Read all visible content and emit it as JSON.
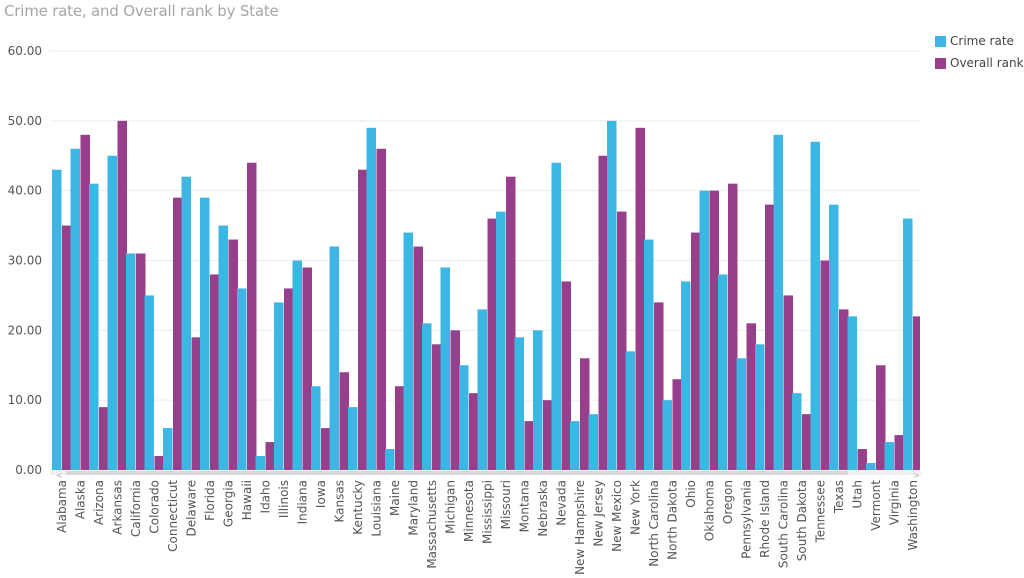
{
  "chart_data": {
    "type": "bar",
    "title": "Crime rate, and Overall rank by State",
    "xlabel": "",
    "ylabel": "",
    "ylim": [
      0,
      60
    ],
    "yticks": [
      "0.00",
      "10.00",
      "20.00",
      "30.00",
      "40.00",
      "50.00",
      "60.00"
    ],
    "ytick_values": [
      0,
      10,
      20,
      30,
      40,
      50,
      60
    ],
    "grid": true,
    "legend_position": "top-right",
    "categories": [
      "Alabama",
      "Alaska",
      "Arizona",
      "Arkansas",
      "California",
      "Colorado",
      "Connecticut",
      "Delaware",
      "Florida",
      "Georgia",
      "Hawaii",
      "Idaho",
      "Illinois",
      "Indiana",
      "Iowa",
      "Kansas",
      "Kentucky",
      "Louisiana",
      "Maine",
      "Maryland",
      "Massachusetts",
      "Michigan",
      "Minnesota",
      "Mississippi",
      "Missouri",
      "Montana",
      "Nebraska",
      "Nevada",
      "New Hampshire",
      "New Jersey",
      "New Mexico",
      "New York",
      "North Carolina",
      "North Dakota",
      "Ohio",
      "Oklahoma",
      "Oregon",
      "Pennsylvania",
      "Rhode Island",
      "South Carolina",
      "South Dakota",
      "Tennessee",
      "Texas",
      "Utah",
      "Vermont",
      "Virginia",
      "Washington"
    ],
    "series": [
      {
        "name": "Crime rate",
        "color": "#3cb6e3",
        "values": [
          43,
          46,
          41,
          45,
          31,
          25,
          6,
          42,
          39,
          35,
          26,
          2,
          24,
          30,
          12,
          32,
          9,
          49,
          3,
          34,
          21,
          29,
          15,
          23,
          37,
          19,
          20,
          44,
          7,
          8,
          50,
          17,
          33,
          10,
          27,
          40,
          28,
          16,
          18,
          48,
          11,
          47,
          38,
          22,
          1,
          4,
          36
        ]
      },
      {
        "name": "Overall rank",
        "color": "#973f8a",
        "values": [
          35,
          48,
          9,
          50,
          31,
          2,
          39,
          19,
          28,
          33,
          44,
          4,
          26,
          29,
          6,
          14,
          43,
          46,
          12,
          32,
          18,
          20,
          11,
          36,
          42,
          7,
          10,
          27,
          16,
          45,
          37,
          49,
          24,
          13,
          34,
          40,
          41,
          21,
          38,
          25,
          8,
          30,
          23,
          3,
          15,
          5,
          22
        ]
      }
    ],
    "scrollbar": {
      "left_arrow": "<",
      "right_arrow": ">"
    }
  }
}
